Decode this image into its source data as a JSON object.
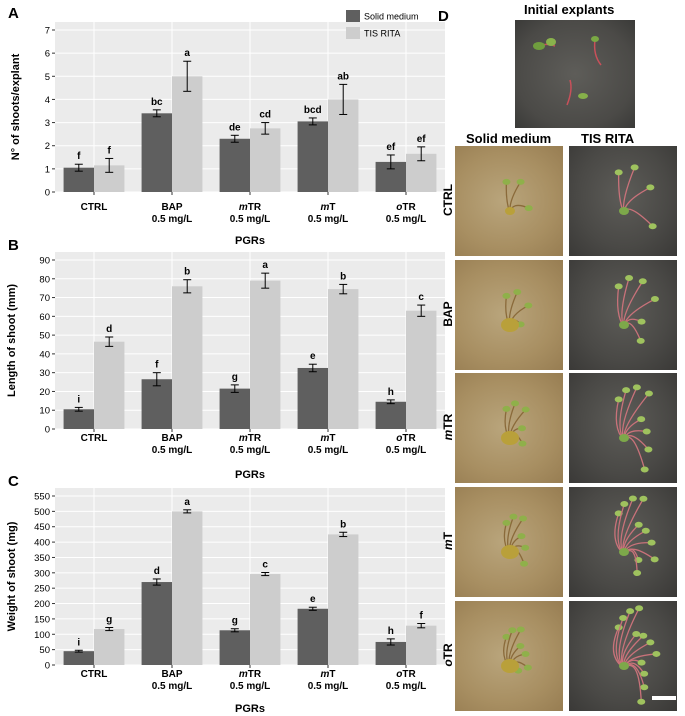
{
  "chart_data": [
    {
      "panel": "A",
      "type": "bar",
      "ylabel": "N° of shoots/explant",
      "xlabel": "PGRs",
      "ylim": [
        0,
        7
      ],
      "yticks": [
        0,
        1,
        2,
        3,
        4,
        5,
        6,
        7
      ],
      "categories": [
        {
          "prefix": "",
          "main": "CTRL",
          "sub": ""
        },
        {
          "prefix": "",
          "main": "BAP",
          "sub": "0.5 mg/L"
        },
        {
          "prefix": "m",
          "main": "TR",
          "sub": "0.5 mg/L"
        },
        {
          "prefix": "m",
          "main": "T",
          "sub": "0.5 mg/L"
        },
        {
          "prefix": "o",
          "main": "TR",
          "sub": "0.5 mg/L"
        }
      ],
      "series": [
        {
          "name": "Solid medium",
          "color": "#5f5f5f",
          "values": [
            1.05,
            3.4,
            2.3,
            3.05,
            1.3
          ],
          "errors": [
            0.15,
            0.15,
            0.15,
            0.15,
            0.3
          ],
          "labels": [
            "f",
            "bc",
            "de",
            "bcd",
            "ef"
          ]
        },
        {
          "name": "TIS RITA",
          "color": "#cdcdcd",
          "values": [
            1.15,
            5.0,
            2.75,
            4.0,
            1.65
          ],
          "errors": [
            0.3,
            0.65,
            0.25,
            0.65,
            0.3
          ],
          "labels": [
            "f",
            "a",
            "cd",
            "ab",
            "ef"
          ]
        }
      ],
      "legend": "top-right"
    },
    {
      "panel": "B",
      "type": "bar",
      "ylabel": "Length of shoot (mm)",
      "xlabel": "PGRs",
      "ylim": [
        0,
        90
      ],
      "yticks": [
        0,
        10,
        20,
        30,
        40,
        50,
        60,
        70,
        80,
        90
      ],
      "categories": [
        {
          "prefix": "",
          "main": "CTRL",
          "sub": ""
        },
        {
          "prefix": "",
          "main": "BAP",
          "sub": "0.5 mg/L"
        },
        {
          "prefix": "m",
          "main": "TR",
          "sub": "0.5 mg/L"
        },
        {
          "prefix": "m",
          "main": "T",
          "sub": "0.5 mg/L"
        },
        {
          "prefix": "o",
          "main": "TR",
          "sub": "0.5 mg/L"
        }
      ],
      "series": [
        {
          "name": "Solid medium",
          "color": "#5f5f5f",
          "values": [
            10.5,
            26.5,
            21.5,
            32.5,
            14.5
          ],
          "errors": [
            1.0,
            3.5,
            2.0,
            2.0,
            1.0
          ],
          "labels": [
            "i",
            "f",
            "g",
            "e",
            "h"
          ]
        },
        {
          "name": "TIS RITA",
          "color": "#cdcdcd",
          "values": [
            46.5,
            76.0,
            79.0,
            74.5,
            63.0
          ],
          "errors": [
            2.5,
            3.5,
            4.0,
            2.5,
            3.0
          ],
          "labels": [
            "d",
            "b",
            "a",
            "b",
            "c"
          ]
        }
      ]
    },
    {
      "panel": "C",
      "type": "bar",
      "ylabel": "Weight of shoot (mg)",
      "xlabel": "PGRs",
      "ylim": [
        0,
        550
      ],
      "yticks": [
        0,
        50,
        100,
        150,
        200,
        250,
        300,
        350,
        400,
        450,
        500,
        550
      ],
      "categories": [
        {
          "prefix": "",
          "main": "CTRL",
          "sub": ""
        },
        {
          "prefix": "",
          "main": "BAP",
          "sub": "0.5 mg/L"
        },
        {
          "prefix": "m",
          "main": "TR",
          "sub": "0.5 mg/L"
        },
        {
          "prefix": "m",
          "main": "T",
          "sub": "0.5 mg/L"
        },
        {
          "prefix": "o",
          "main": "TR",
          "sub": "0.5 mg/L"
        }
      ],
      "series": [
        {
          "name": "Solid medium",
          "color": "#5f5f5f",
          "values": [
            45,
            270,
            113,
            183,
            75
          ],
          "errors": [
            3,
            10,
            5,
            5,
            10
          ],
          "labels": [
            "i",
            "d",
            "g",
            "e",
            "h"
          ]
        },
        {
          "name": "TIS RITA",
          "color": "#cdcdcd",
          "values": [
            117,
            500,
            296,
            425,
            128
          ],
          "errors": [
            5,
            5,
            5,
            7,
            7
          ],
          "labels": [
            "g",
            "a",
            "c",
            "b",
            "f"
          ]
        }
      ]
    }
  ],
  "photos": {
    "panel_letter": "D",
    "initial_title": "Initial explants",
    "solid_title": "Solid medium",
    "rita_title": "TIS RITA",
    "rows": [
      {
        "prefix": "",
        "main": "CTRL"
      },
      {
        "prefix": "",
        "main": "BAP"
      },
      {
        "prefix": "m",
        "main": "TR"
      },
      {
        "prefix": "m",
        "main": "T"
      },
      {
        "prefix": "o",
        "main": "TR"
      }
    ]
  }
}
